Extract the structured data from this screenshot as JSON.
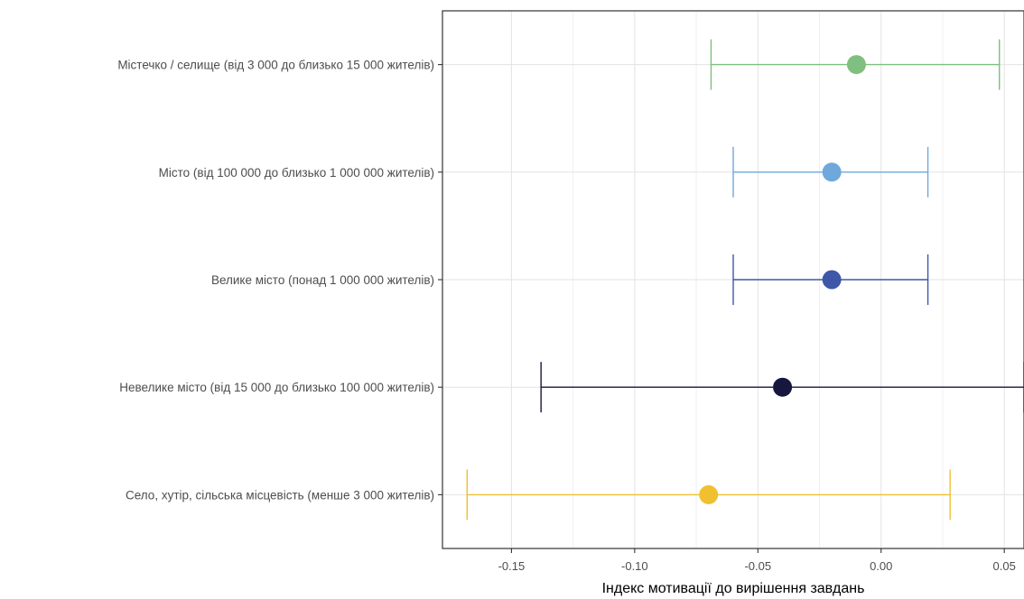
{
  "chart_data": {
    "type": "errorbar",
    "title": "",
    "xlabel": "Індекс мотивації до вирішення завдань",
    "ylabel": "",
    "xlim": [
      -0.178,
      0.058
    ],
    "x_ticks": [
      -0.15,
      -0.1,
      -0.05,
      0.0,
      0.05
    ],
    "x_tick_labels": [
      "-0.15",
      "-0.10",
      "-0.05",
      "0.00",
      "0.05"
    ],
    "grid": true,
    "legend": "none",
    "categories": [
      "Містечко / селище (від 3 000 до близько 15 000 жителів)",
      "Місто (від 100 000 до близько 1 000 000 жителів)",
      "Велике місто (понад 1 000 000 жителів)",
      "Невелике місто (від 15 000 до близько 100 000 жителів)",
      "Село, хутір, сільська місцевість (менше 3 000 жителів)"
    ],
    "estimates": [
      -0.01,
      -0.02,
      -0.02,
      -0.04,
      -0.07
    ],
    "ci_low": [
      -0.069,
      -0.06,
      -0.06,
      -0.138,
      -0.168
    ],
    "ci_high": [
      0.048,
      0.019,
      0.019,
      0.058,
      0.028
    ],
    "colors": [
      "#7fbf7f",
      "#6fa8dc",
      "#3f57a8",
      "#16163f",
      "#f0c030"
    ]
  }
}
